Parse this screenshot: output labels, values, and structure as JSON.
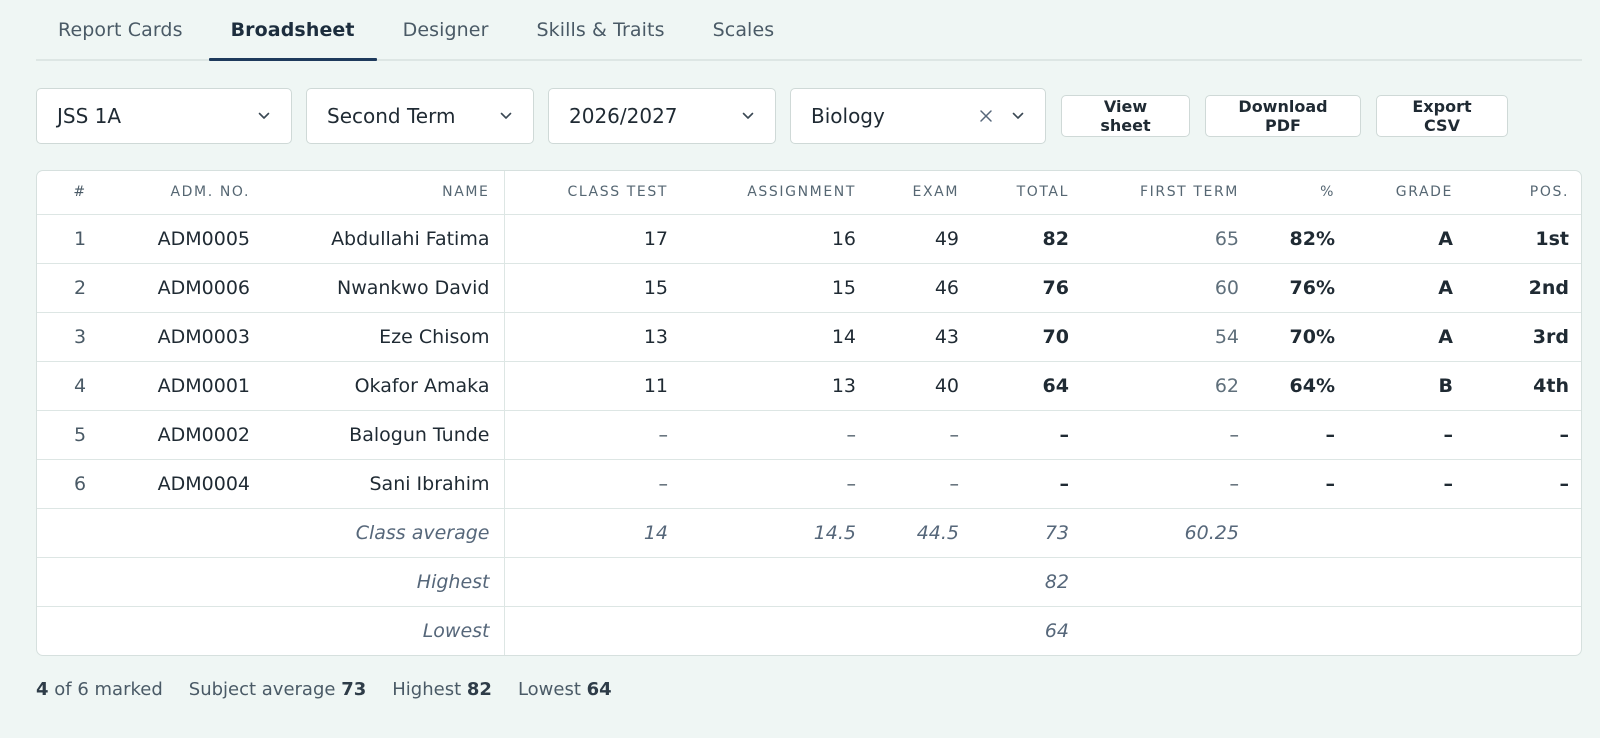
{
  "tabs": [
    {
      "label": "Report Cards",
      "active": false
    },
    {
      "label": "Broadsheet",
      "active": true
    },
    {
      "label": "Designer",
      "active": false
    },
    {
      "label": "Skills & Traits",
      "active": false
    },
    {
      "label": "Scales",
      "active": false
    }
  ],
  "filters": {
    "class": "JSS 1A",
    "term": "Second Term",
    "session": "2026/2027",
    "subject": "Biology"
  },
  "buttons": {
    "view_sheet": "View sheet",
    "download_pdf": "Download PDF",
    "export_csv": "Export CSV"
  },
  "icons": {
    "dropdown": "chevron-down-icon",
    "clear": "close-icon"
  },
  "table": {
    "headers": {
      "idx": "#",
      "adm": "ADM. NO.",
      "name": "NAME",
      "class_test": "CLASS TEST",
      "assignment": "ASSIGNMENT",
      "exam": "EXAM",
      "total": "TOTAL",
      "first_term": "FIRST TERM",
      "percent": "%",
      "grade": "GRADE",
      "pos": "POS."
    },
    "rows": [
      {
        "idx": "1",
        "adm": "ADM0005",
        "name": "Abdullahi Fatima",
        "class_test": "17",
        "assignment": "16",
        "exam": "49",
        "total": "82",
        "first_term": "65",
        "percent": "82%",
        "grade": "A",
        "pos": "1st"
      },
      {
        "idx": "2",
        "adm": "ADM0006",
        "name": "Nwankwo David",
        "class_test": "15",
        "assignment": "15",
        "exam": "46",
        "total": "76",
        "first_term": "60",
        "percent": "76%",
        "grade": "A",
        "pos": "2nd"
      },
      {
        "idx": "3",
        "adm": "ADM0003",
        "name": "Eze Chisom",
        "class_test": "13",
        "assignment": "14",
        "exam": "43",
        "total": "70",
        "first_term": "54",
        "percent": "70%",
        "grade": "A",
        "pos": "3rd"
      },
      {
        "idx": "4",
        "adm": "ADM0001",
        "name": "Okafor Amaka",
        "class_test": "11",
        "assignment": "13",
        "exam": "40",
        "total": "64",
        "first_term": "62",
        "percent": "64%",
        "grade": "B",
        "pos": "4th"
      },
      {
        "idx": "5",
        "adm": "ADM0002",
        "name": "Balogun Tunde",
        "class_test": "–",
        "assignment": "–",
        "exam": "–",
        "total": "–",
        "first_term": "–",
        "percent": "–",
        "grade": "–",
        "pos": "–"
      },
      {
        "idx": "6",
        "adm": "ADM0004",
        "name": "Sani Ibrahim",
        "class_test": "–",
        "assignment": "–",
        "exam": "–",
        "total": "–",
        "first_term": "–",
        "percent": "–",
        "grade": "–",
        "pos": "–"
      }
    ],
    "summary": {
      "average": {
        "label": "Class average",
        "class_test": "14",
        "assignment": "14.5",
        "exam": "44.5",
        "total": "73",
        "first_term": "60.25"
      },
      "highest": {
        "label": "Highest",
        "total": "82"
      },
      "lowest": {
        "label": "Lowest",
        "total": "64"
      }
    }
  },
  "stats": {
    "marked_count": "4",
    "marked_text": "of 6 marked",
    "subject_average_label": "Subject average",
    "subject_average_value": "73",
    "highest_label": "Highest",
    "highest_value": "82",
    "lowest_label": "Lowest",
    "lowest_value": "64"
  }
}
